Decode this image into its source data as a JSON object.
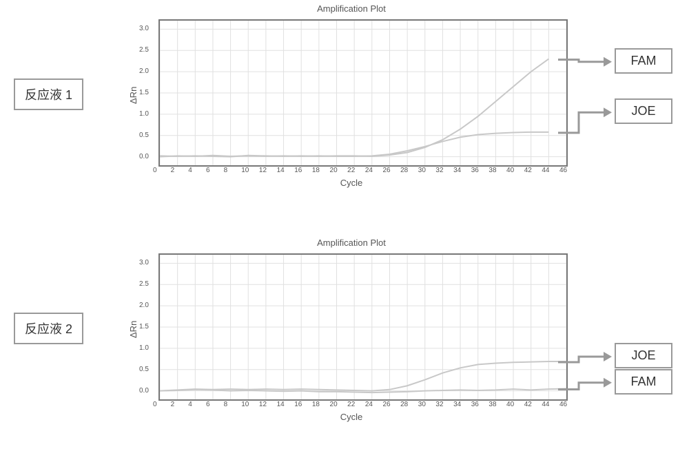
{
  "global": {
    "grid_color": "#e0e0e0",
    "series_color": "#c8c8c8",
    "arrow_color": "#9e9e9e",
    "box_border_color": "#9e9e9e",
    "text_color": "#555555"
  },
  "plots": [
    {
      "left_label": "反应液 1",
      "title": "Amplification Plot",
      "xlabel": "Cycle",
      "ylabel": "ΔRn",
      "xlim": [
        0,
        46
      ],
      "ylim": [
        -0.2,
        3.2
      ],
      "xticks": [
        0,
        2,
        4,
        6,
        8,
        10,
        12,
        14,
        16,
        18,
        20,
        22,
        24,
        26,
        28,
        30,
        32,
        34,
        36,
        38,
        40,
        42,
        44,
        46
      ],
      "yticks": [
        0.0,
        0.5,
        1.0,
        1.5,
        2.0,
        2.5,
        3.0
      ],
      "series": [
        {
          "name": "FAM",
          "color": "#c8c8c8",
          "linewidth": 2,
          "x": [
            0,
            2,
            4,
            6,
            8,
            10,
            12,
            14,
            16,
            18,
            20,
            22,
            24,
            26,
            28,
            30,
            32,
            34,
            36,
            38,
            40,
            42,
            44
          ],
          "y": [
            0.02,
            0.01,
            0.02,
            0.01,
            0.0,
            0.03,
            0.02,
            0.01,
            0.02,
            0.01,
            0.02,
            0.02,
            0.01,
            0.04,
            0.1,
            0.22,
            0.4,
            0.65,
            0.95,
            1.3,
            1.65,
            2.0,
            2.3
          ],
          "legend_y_frac": 0.28
        },
        {
          "name": "JOE",
          "color": "#c8c8c8",
          "linewidth": 2,
          "x": [
            0,
            2,
            4,
            6,
            8,
            10,
            12,
            14,
            16,
            18,
            20,
            22,
            24,
            26,
            28,
            30,
            32,
            34,
            36,
            38,
            40,
            42,
            44
          ],
          "y": [
            0.0,
            0.02,
            0.01,
            0.03,
            0.01,
            0.02,
            0.01,
            0.02,
            0.01,
            0.02,
            0.01,
            0.01,
            0.02,
            0.06,
            0.14,
            0.24,
            0.36,
            0.46,
            0.52,
            0.55,
            0.57,
            0.58,
            0.58
          ],
          "legend_y_frac": 0.63
        }
      ]
    },
    {
      "left_label": "反应液 2",
      "title": "Amplification Plot",
      "xlabel": "Cycle",
      "ylabel": "ΔRn",
      "xlim": [
        0,
        46
      ],
      "ylim": [
        -0.2,
        3.2
      ],
      "xticks": [
        0,
        2,
        4,
        6,
        8,
        10,
        12,
        14,
        16,
        18,
        20,
        22,
        24,
        26,
        28,
        30,
        32,
        34,
        36,
        38,
        40,
        42,
        44,
        46
      ],
      "yticks": [
        0.0,
        0.5,
        1.0,
        1.5,
        2.0,
        2.5,
        3.0
      ],
      "series": [
        {
          "name": "JOE",
          "color": "#c8c8c8",
          "linewidth": 2,
          "x": [
            0,
            2,
            4,
            6,
            8,
            10,
            12,
            14,
            16,
            18,
            20,
            22,
            24,
            26,
            28,
            30,
            32,
            34,
            36,
            38,
            40,
            42,
            44,
            46
          ],
          "y": [
            0.0,
            0.02,
            0.04,
            0.03,
            0.04,
            0.03,
            0.04,
            0.03,
            0.04,
            0.03,
            0.02,
            0.01,
            0.0,
            0.03,
            0.12,
            0.26,
            0.42,
            0.54,
            0.62,
            0.65,
            0.67,
            0.68,
            0.69,
            0.69
          ],
          "legend_y_frac": 0.7
        },
        {
          "name": "FAM",
          "color": "#c8c8c8",
          "linewidth": 2,
          "x": [
            0,
            2,
            4,
            6,
            8,
            10,
            12,
            14,
            16,
            18,
            20,
            22,
            24,
            26,
            28,
            30,
            32,
            34,
            36,
            38,
            40,
            42,
            44,
            46
          ],
          "y": [
            0.0,
            0.01,
            0.03,
            0.02,
            0.0,
            0.01,
            0.0,
            -0.01,
            0.0,
            -0.02,
            -0.02,
            -0.03,
            -0.04,
            -0.03,
            -0.02,
            0.0,
            0.01,
            0.02,
            0.01,
            0.02,
            0.04,
            0.02,
            0.04,
            0.05
          ],
          "legend_y_frac": 0.88
        }
      ]
    }
  ]
}
